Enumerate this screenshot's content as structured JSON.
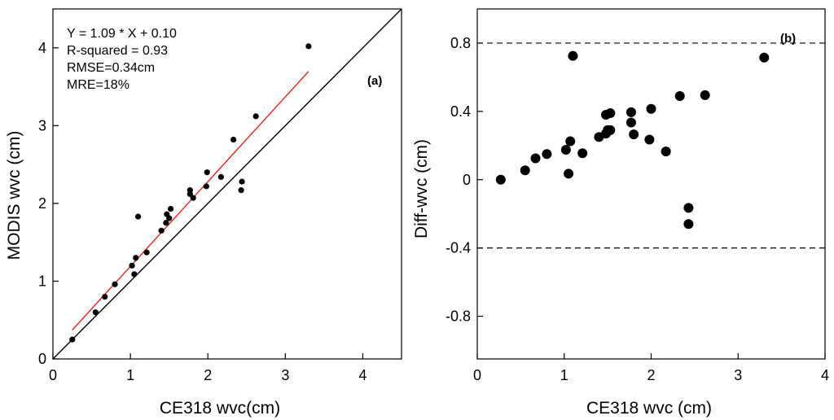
{
  "chart_data": [
    {
      "panel_label": "(a)",
      "type": "scatter",
      "xlabel": "CE318 wvc(cm)",
      "ylabel": "MODIS wvc (cm)",
      "xlim": [
        0,
        4.5
      ],
      "ylim": [
        0,
        4.5
      ],
      "xticks": [
        0,
        1,
        2,
        3,
        4
      ],
      "yticks": [
        0,
        1,
        2,
        3,
        4
      ],
      "annotations": [
        "Y = 1.09 * X + 0.10",
        "R-squared = 0.93",
        "RMSE=0.34cm",
        "MRE=18%"
      ],
      "points": [
        [
          0.25,
          0.25
        ],
        [
          0.55,
          0.6
        ],
        [
          0.67,
          0.8
        ],
        [
          0.8,
          0.96
        ],
        [
          1.02,
          1.2
        ],
        [
          1.05,
          1.09
        ],
        [
          1.07,
          1.3
        ],
        [
          1.1,
          1.83
        ],
        [
          1.21,
          1.37
        ],
        [
          1.4,
          1.65
        ],
        [
          1.46,
          1.75
        ],
        [
          1.47,
          1.86
        ],
        [
          1.5,
          1.81
        ],
        [
          1.52,
          1.93
        ],
        [
          1.77,
          2.17
        ],
        [
          1.77,
          2.12
        ],
        [
          1.81,
          2.07
        ],
        [
          1.98,
          2.22
        ],
        [
          1.99,
          2.4
        ],
        [
          2.17,
          2.34
        ],
        [
          2.33,
          2.82
        ],
        [
          2.43,
          2.17
        ],
        [
          2.44,
          2.28
        ],
        [
          2.62,
          3.12
        ],
        [
          3.3,
          4.02
        ]
      ],
      "lines": [
        {
          "name": "fit",
          "color": "#e8251f",
          "x": [
            0.25,
            3.3
          ],
          "y": [
            0.3725,
            3.697
          ]
        },
        {
          "name": "1:1",
          "color": "#000000",
          "x": [
            0,
            4.5
          ],
          "y": [
            0,
            4.5
          ]
        }
      ]
    },
    {
      "panel_label": "(b)",
      "type": "scatter",
      "xlabel": "CE318 wvc (cm)",
      "ylabel": "Diff-wvc (cm)",
      "xlim": [
        0,
        4
      ],
      "ylim": [
        -1.05,
        1.0
      ],
      "xticks": [
        0,
        1,
        2,
        3,
        4
      ],
      "yticks": [
        0.8,
        0.4,
        0,
        -0.4,
        -0.8
      ],
      "ytick_labels": [
        "0.8",
        "0.4",
        "0",
        "-0.4",
        "-0.8"
      ],
      "hlines": [
        0.8,
        -0.4
      ],
      "points": [
        [
          0.27,
          0.0
        ],
        [
          0.55,
          0.055
        ],
        [
          0.67,
          0.125
        ],
        [
          0.8,
          0.15
        ],
        [
          1.02,
          0.175
        ],
        [
          1.07,
          0.225
        ],
        [
          1.05,
          0.035
        ],
        [
          1.1,
          0.725
        ],
        [
          1.21,
          0.155
        ],
        [
          1.4,
          0.25
        ],
        [
          1.48,
          0.27
        ],
        [
          1.48,
          0.38
        ],
        [
          1.5,
          0.29
        ],
        [
          1.53,
          0.29
        ],
        [
          1.53,
          0.39
        ],
        [
          1.77,
          0.395
        ],
        [
          1.77,
          0.335
        ],
        [
          1.8,
          0.265
        ],
        [
          1.98,
          0.235
        ],
        [
          2.0,
          0.415
        ],
        [
          2.17,
          0.165
        ],
        [
          2.33,
          0.49
        ],
        [
          2.43,
          -0.165
        ],
        [
          2.43,
          -0.26
        ],
        [
          2.62,
          0.495
        ],
        [
          3.3,
          0.715
        ]
      ]
    }
  ]
}
